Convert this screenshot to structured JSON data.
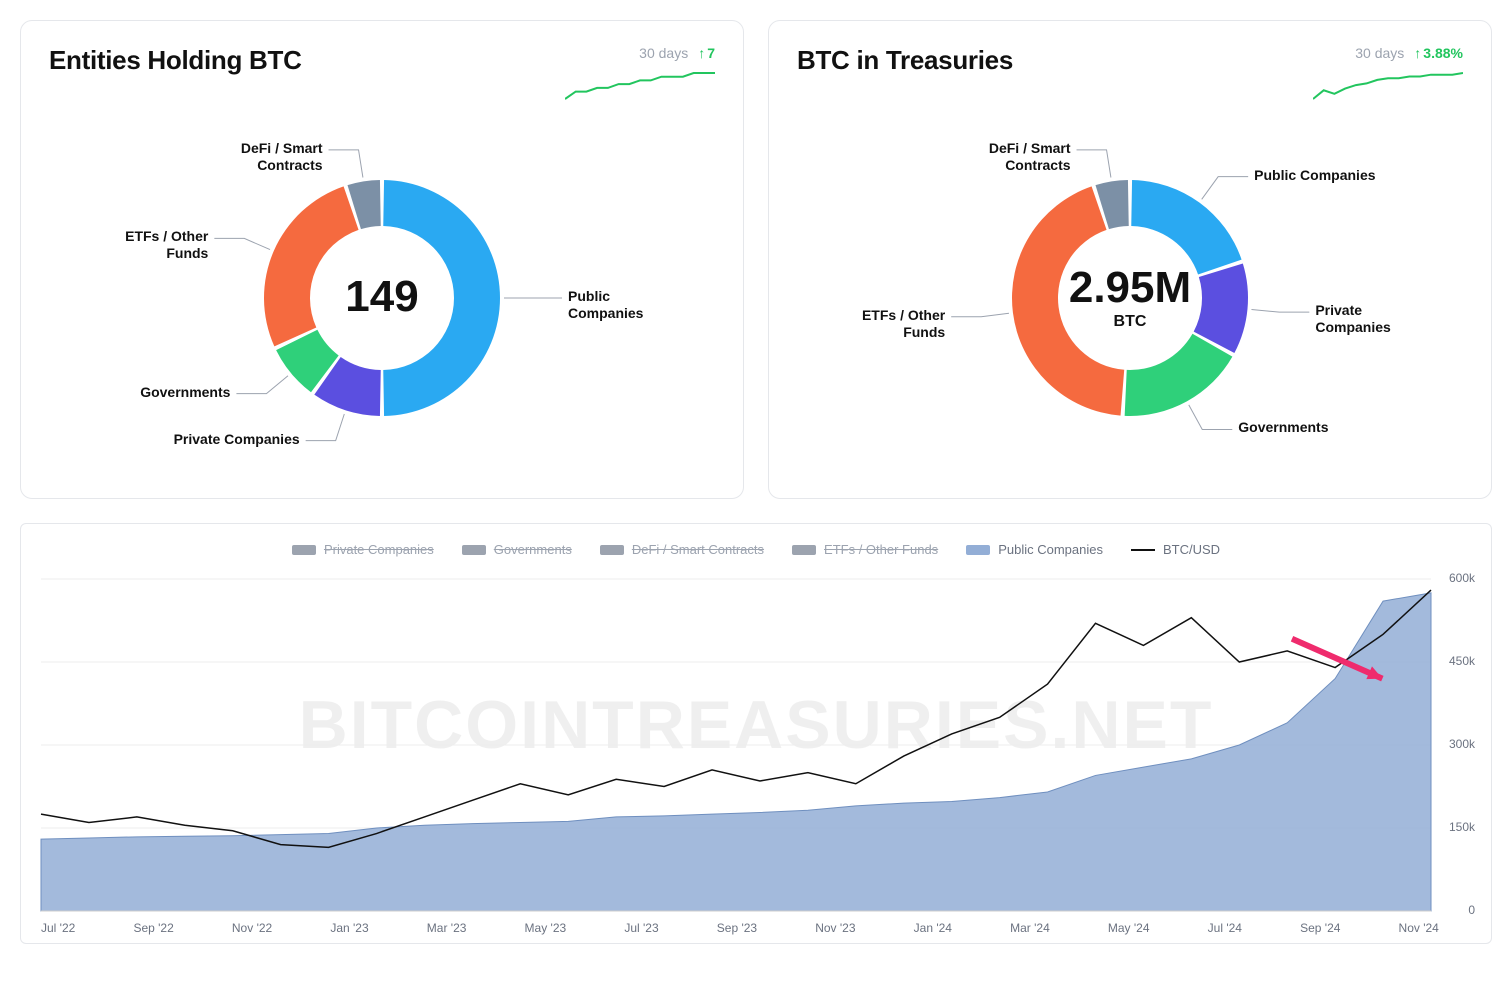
{
  "cards": {
    "entities": {
      "title": "Entities Holding BTC",
      "trend_label": "30 days",
      "trend_value": "7",
      "trend_color": "#22c55e",
      "center_value": "149",
      "center_sub": "",
      "spark": {
        "color": "#22c55e",
        "points": [
          0,
          2,
          2,
          3,
          3,
          4,
          4,
          5,
          5,
          6,
          6,
          6,
          7,
          7,
          7
        ]
      },
      "donut": {
        "type": "donut",
        "inner_radius": 72,
        "outer_radius": 118,
        "gap_deg": 2,
        "segments": [
          {
            "label": "Public Companies",
            "value": 50,
            "color": "#2aa9f2"
          },
          {
            "label": "Private Companies",
            "value": 10,
            "color": "#5b4fe0"
          },
          {
            "label": "Governments",
            "value": 8,
            "color": "#2fd07a"
          },
          {
            "label": "ETFs / Other Funds",
            "value": 27,
            "color": "#f56a3f"
          },
          {
            "label": "DeFi / Smart Contracts",
            "value": 5,
            "color": "#7c90a6"
          }
        ],
        "label_font_size": 14
      }
    },
    "treasuries": {
      "title": "BTC in Treasuries",
      "trend_label": "30 days",
      "trend_value": "3.88%",
      "trend_color": "#22c55e",
      "center_value": "2.95M",
      "center_sub": "BTC",
      "spark": {
        "color": "#22c55e",
        "points": [
          0,
          5,
          3,
          6,
          8,
          9,
          11,
          12,
          12,
          13,
          13,
          14,
          14,
          14,
          15
        ]
      },
      "donut": {
        "type": "donut",
        "inner_radius": 72,
        "outer_radius": 118,
        "gap_deg": 2,
        "segments": [
          {
            "label": "Public Companies",
            "value": 20,
            "color": "#2aa9f2"
          },
          {
            "label": "Private Companies",
            "value": 13,
            "color": "#5b4fe0"
          },
          {
            "label": "Governments",
            "value": 18,
            "color": "#2fd07a"
          },
          {
            "label": "ETFs / Other Funds",
            "value": 44,
            "color": "#f56a3f"
          },
          {
            "label": "DeFi / Smart Contracts",
            "value": 5,
            "color": "#7c90a6"
          }
        ],
        "label_font_size": 14
      }
    }
  },
  "area_chart": {
    "type": "area+line",
    "watermark": "BITCOINTREASURIES.NET",
    "legend": [
      {
        "label": "Private Companies",
        "color": "#9ca3af",
        "disabled": true,
        "kind": "swatch"
      },
      {
        "label": "Governments",
        "color": "#9ca3af",
        "disabled": true,
        "kind": "swatch"
      },
      {
        "label": "DeFi / Smart Contracts",
        "color": "#9ca3af",
        "disabled": true,
        "kind": "swatch"
      },
      {
        "label": "ETFs / Other Funds",
        "color": "#9ca3af",
        "disabled": true,
        "kind": "swatch"
      },
      {
        "label": "Public Companies",
        "color": "#93aed6",
        "disabled": false,
        "kind": "swatch"
      },
      {
        "label": "BTC/USD",
        "color": "#111111",
        "disabled": false,
        "kind": "line"
      }
    ],
    "x_labels": [
      "Jul '22",
      "Sep '22",
      "Nov '22",
      "Jan '23",
      "Mar '23",
      "May '23",
      "Jul '23",
      "Sep '23",
      "Nov '23",
      "Jan '24",
      "Mar '24",
      "May '24",
      "Jul '24",
      "Sep '24",
      "Nov '24"
    ],
    "y_ticks": [
      0,
      150000,
      300000,
      450000,
      600000
    ],
    "y_tick_labels": [
      "0",
      "150k",
      "300k",
      "450k",
      "600k"
    ],
    "ylim": [
      0,
      600000
    ],
    "area": {
      "fill": "#93aed6",
      "fill_opacity": 0.85,
      "stroke": "#6f8fbf",
      "values": [
        130000,
        132000,
        134000,
        135000,
        136000,
        138000,
        140000,
        150000,
        155000,
        158000,
        160000,
        162000,
        170000,
        172000,
        175000,
        178000,
        182000,
        190000,
        195000,
        198000,
        205000,
        215000,
        245000,
        260000,
        275000,
        300000,
        340000,
        420000,
        560000,
        575000
      ]
    },
    "btc_line": {
      "stroke": "#111111",
      "stroke_width": 1.5,
      "values": [
        175000,
        160000,
        170000,
        155000,
        145000,
        120000,
        115000,
        140000,
        170000,
        200000,
        230000,
        210000,
        238000,
        225000,
        255000,
        235000,
        250000,
        230000,
        280000,
        320000,
        350000,
        410000,
        520000,
        480000,
        530000,
        450000,
        470000,
        440000,
        500000,
        580000
      ]
    },
    "annotation_arrow": {
      "color": "#ef2b6d",
      "from": [
        0.9,
        0.18
      ],
      "to": [
        0.965,
        0.3
      ]
    }
  },
  "style": {
    "card_border": "#e5e7eb",
    "text_muted": "#9ca3af",
    "background": "#ffffff"
  }
}
